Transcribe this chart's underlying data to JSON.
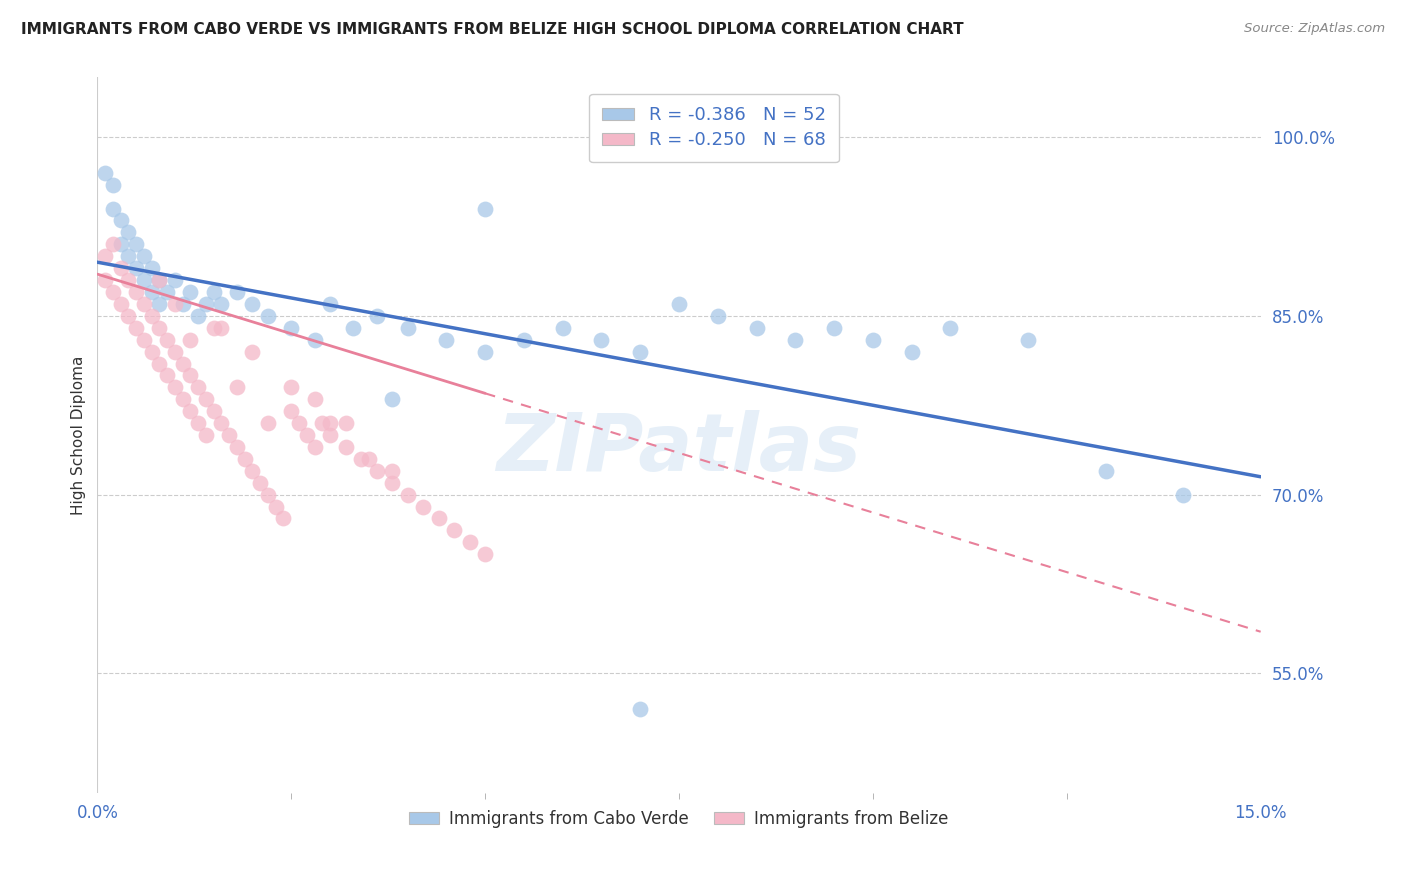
{
  "title": "IMMIGRANTS FROM CABO VERDE VS IMMIGRANTS FROM BELIZE HIGH SCHOOL DIPLOMA CORRELATION CHART",
  "source": "Source: ZipAtlas.com",
  "ylabel": "High School Diploma",
  "yticks": [
    "55.0%",
    "70.0%",
    "85.0%",
    "100.0%"
  ],
  "ytick_vals": [
    0.55,
    0.7,
    0.85,
    1.0
  ],
  "xlim": [
    0.0,
    0.15
  ],
  "ylim": [
    0.45,
    1.05
  ],
  "legend_r1": "-0.386",
  "legend_n1": "52",
  "legend_r2": "-0.250",
  "legend_n2": "68",
  "color_blue": "#a8c8e8",
  "color_pink": "#f4b8c8",
  "line_blue": "#4472c4",
  "line_pink": "#e8809a",
  "watermark": "ZIPatlas",
  "cabo_verde_x": [
    0.001,
    0.002,
    0.002,
    0.003,
    0.003,
    0.004,
    0.004,
    0.005,
    0.005,
    0.006,
    0.006,
    0.007,
    0.007,
    0.008,
    0.008,
    0.009,
    0.01,
    0.011,
    0.012,
    0.013,
    0.014,
    0.015,
    0.016,
    0.018,
    0.02,
    0.022,
    0.025,
    0.028,
    0.03,
    0.033,
    0.036,
    0.04,
    0.045,
    0.05,
    0.055,
    0.06,
    0.065,
    0.07,
    0.075,
    0.08,
    0.085,
    0.09,
    0.095,
    0.1,
    0.105,
    0.11,
    0.12,
    0.13,
    0.14,
    0.05,
    0.038,
    0.07
  ],
  "cabo_verde_y": [
    0.97,
    0.96,
    0.94,
    0.93,
    0.91,
    0.92,
    0.9,
    0.91,
    0.89,
    0.9,
    0.88,
    0.89,
    0.87,
    0.88,
    0.86,
    0.87,
    0.88,
    0.86,
    0.87,
    0.85,
    0.86,
    0.87,
    0.86,
    0.87,
    0.86,
    0.85,
    0.84,
    0.83,
    0.86,
    0.84,
    0.85,
    0.84,
    0.83,
    0.82,
    0.83,
    0.84,
    0.83,
    0.82,
    0.86,
    0.85,
    0.84,
    0.83,
    0.84,
    0.83,
    0.82,
    0.84,
    0.83,
    0.72,
    0.7,
    0.94,
    0.78,
    0.52
  ],
  "belize_x": [
    0.001,
    0.001,
    0.002,
    0.002,
    0.003,
    0.003,
    0.004,
    0.004,
    0.005,
    0.005,
    0.006,
    0.006,
    0.007,
    0.007,
    0.008,
    0.008,
    0.009,
    0.009,
    0.01,
    0.01,
    0.011,
    0.011,
    0.012,
    0.012,
    0.013,
    0.013,
    0.014,
    0.014,
    0.015,
    0.016,
    0.017,
    0.018,
    0.019,
    0.02,
    0.021,
    0.022,
    0.023,
    0.024,
    0.025,
    0.026,
    0.027,
    0.028,
    0.029,
    0.03,
    0.032,
    0.034,
    0.036,
    0.038,
    0.04,
    0.042,
    0.044,
    0.046,
    0.048,
    0.05,
    0.015,
    0.02,
    0.025,
    0.03,
    0.01,
    0.012,
    0.018,
    0.022,
    0.008,
    0.016,
    0.028,
    0.035,
    0.032,
    0.038
  ],
  "belize_y": [
    0.9,
    0.88,
    0.91,
    0.87,
    0.89,
    0.86,
    0.88,
    0.85,
    0.87,
    0.84,
    0.86,
    0.83,
    0.85,
    0.82,
    0.84,
    0.81,
    0.83,
    0.8,
    0.82,
    0.79,
    0.81,
    0.78,
    0.8,
    0.77,
    0.79,
    0.76,
    0.78,
    0.75,
    0.77,
    0.76,
    0.75,
    0.74,
    0.73,
    0.72,
    0.71,
    0.7,
    0.69,
    0.68,
    0.77,
    0.76,
    0.75,
    0.74,
    0.76,
    0.75,
    0.74,
    0.73,
    0.72,
    0.71,
    0.7,
    0.69,
    0.68,
    0.67,
    0.66,
    0.65,
    0.84,
    0.82,
    0.79,
    0.76,
    0.86,
    0.83,
    0.79,
    0.76,
    0.88,
    0.84,
    0.78,
    0.73,
    0.76,
    0.72
  ]
}
